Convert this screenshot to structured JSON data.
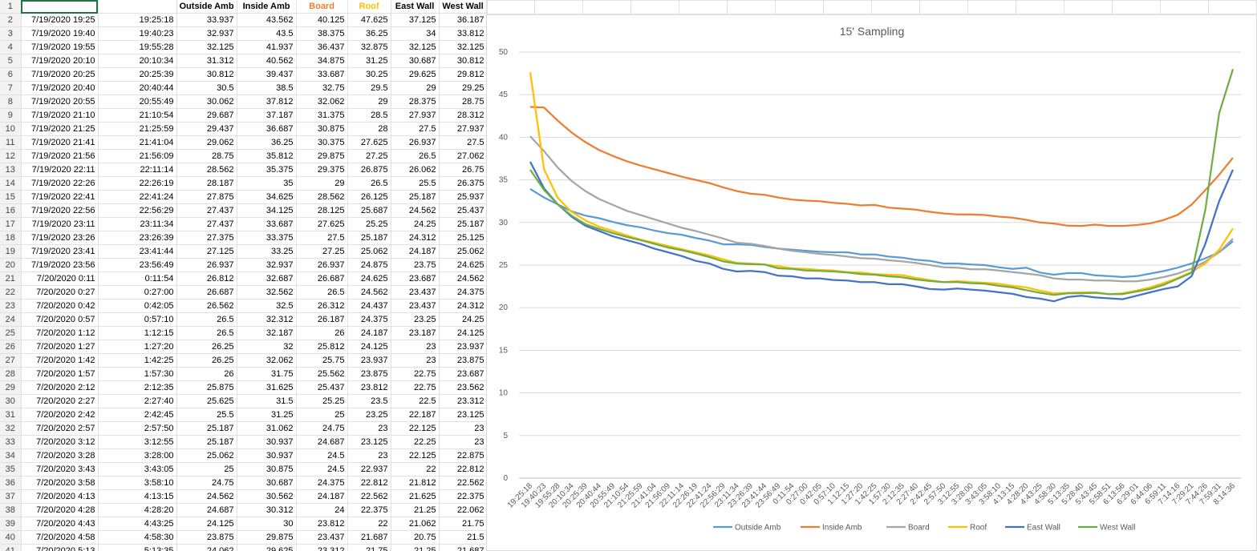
{
  "sheet": {
    "selected_cell_row": "1",
    "columns": [
      "",
      "",
      "Outside Amb",
      "Inside Amb",
      "Board",
      "Roof",
      "East Wall",
      "West Wall"
    ],
    "header_colors": [
      "#000000",
      "#000000",
      "#000000",
      "#000000",
      "#ED7D31",
      "#FFC000",
      "#000000",
      "#000000"
    ],
    "rows": [
      [
        "7/19/2020 19:25",
        "19:25:18",
        "33.937",
        "43.562",
        "40.125",
        "47.625",
        "37.125",
        "36.187"
      ],
      [
        "7/19/2020 19:40",
        "19:40:23",
        "32.937",
        "43.5",
        "38.375",
        "36.25",
        "34",
        "33.812"
      ],
      [
        "7/19/2020 19:55",
        "19:55:28",
        "32.125",
        "41.937",
        "36.437",
        "32.875",
        "32.125",
        "32.125"
      ],
      [
        "7/19/2020 20:10",
        "20:10:34",
        "31.312",
        "40.562",
        "34.875",
        "31.25",
        "30.687",
        "30.812"
      ],
      [
        "7/19/2020 20:25",
        "20:25:39",
        "30.812",
        "39.437",
        "33.687",
        "30.25",
        "29.625",
        "29.812"
      ],
      [
        "7/19/2020 20:40",
        "20:40:44",
        "30.5",
        "38.5",
        "32.75",
        "29.5",
        "29",
        "29.25"
      ],
      [
        "7/19/2020 20:55",
        "20:55:49",
        "30.062",
        "37.812",
        "32.062",
        "29",
        "28.375",
        "28.75"
      ],
      [
        "7/19/2020 21:10",
        "21:10:54",
        "29.687",
        "37.187",
        "31.375",
        "28.5",
        "27.937",
        "28.312"
      ],
      [
        "7/19/2020 21:25",
        "21:25:59",
        "29.437",
        "36.687",
        "30.875",
        "28",
        "27.5",
        "27.937"
      ],
      [
        "7/19/2020 21:41",
        "21:41:04",
        "29.062",
        "36.25",
        "30.375",
        "27.625",
        "26.937",
        "27.5"
      ],
      [
        "7/19/2020 21:56",
        "21:56:09",
        "28.75",
        "35.812",
        "29.875",
        "27.25",
        "26.5",
        "27.062"
      ],
      [
        "7/19/2020 22:11",
        "22:11:14",
        "28.562",
        "35.375",
        "29.375",
        "26.875",
        "26.062",
        "26.75"
      ],
      [
        "7/19/2020 22:26",
        "22:26:19",
        "28.187",
        "35",
        "29",
        "26.5",
        "25.5",
        "26.375"
      ],
      [
        "7/19/2020 22:41",
        "22:41:24",
        "27.875",
        "34.625",
        "28.562",
        "26.125",
        "25.187",
        "25.937"
      ],
      [
        "7/19/2020 22:56",
        "22:56:29",
        "27.437",
        "34.125",
        "28.125",
        "25.687",
        "24.562",
        "25.437"
      ],
      [
        "7/19/2020 23:11",
        "23:11:34",
        "27.437",
        "33.687",
        "27.625",
        "25.25",
        "24.25",
        "25.187"
      ],
      [
        "7/19/2020 23:26",
        "23:26:39",
        "27.375",
        "33.375",
        "27.5",
        "25.187",
        "24.312",
        "25.125"
      ],
      [
        "7/19/2020 23:41",
        "23:41:44",
        "27.125",
        "33.25",
        "27.25",
        "25.062",
        "24.187",
        "25.062"
      ],
      [
        "7/19/2020 23:56",
        "23:56:49",
        "26.937",
        "32.937",
        "26.937",
        "24.875",
        "23.75",
        "24.625"
      ],
      [
        "7/20/2020 0:11",
        "0:11:54",
        "26.812",
        "32.687",
        "26.687",
        "24.625",
        "23.687",
        "24.562"
      ],
      [
        "7/20/2020 0:27",
        "0:27:00",
        "26.687",
        "32.562",
        "26.5",
        "24.562",
        "23.437",
        "24.375"
      ],
      [
        "7/20/2020 0:42",
        "0:42:05",
        "26.562",
        "32.5",
        "26.312",
        "24.437",
        "23.437",
        "24.312"
      ],
      [
        "7/20/2020 0:57",
        "0:57:10",
        "26.5",
        "32.312",
        "26.187",
        "24.375",
        "23.25",
        "24.25"
      ],
      [
        "7/20/2020 1:12",
        "1:12:15",
        "26.5",
        "32.187",
        "26",
        "24.187",
        "23.187",
        "24.125"
      ],
      [
        "7/20/2020 1:27",
        "1:27:20",
        "26.25",
        "32",
        "25.812",
        "24.125",
        "23",
        "23.937"
      ],
      [
        "7/20/2020 1:42",
        "1:42:25",
        "26.25",
        "32.062",
        "25.75",
        "23.937",
        "23",
        "23.875"
      ],
      [
        "7/20/2020 1:57",
        "1:57:30",
        "26",
        "31.75",
        "25.562",
        "23.875",
        "22.75",
        "23.687"
      ],
      [
        "7/20/2020 2:12",
        "2:12:35",
        "25.875",
        "31.625",
        "25.437",
        "23.812",
        "22.75",
        "23.562"
      ],
      [
        "7/20/2020 2:27",
        "2:27:40",
        "25.625",
        "31.5",
        "25.25",
        "23.5",
        "22.5",
        "23.312"
      ],
      [
        "7/20/2020 2:42",
        "2:42:45",
        "25.5",
        "31.25",
        "25",
        "23.25",
        "22.187",
        "23.125"
      ],
      [
        "7/20/2020 2:57",
        "2:57:50",
        "25.187",
        "31.062",
        "24.75",
        "23",
        "22.125",
        "23"
      ],
      [
        "7/20/2020 3:12",
        "3:12:55",
        "25.187",
        "30.937",
        "24.687",
        "23.125",
        "22.25",
        "23"
      ],
      [
        "7/20/2020 3:28",
        "3:28:00",
        "25.062",
        "30.937",
        "24.5",
        "23",
        "22.125",
        "22.875"
      ],
      [
        "7/20/2020 3:43",
        "3:43:05",
        "25",
        "30.875",
        "24.5",
        "22.937",
        "22",
        "22.812"
      ],
      [
        "7/20/2020 3:58",
        "3:58:10",
        "24.75",
        "30.687",
        "24.375",
        "22.812",
        "21.812",
        "22.562"
      ],
      [
        "7/20/2020 4:13",
        "4:13:15",
        "24.562",
        "30.562",
        "24.187",
        "22.562",
        "21.625",
        "22.375"
      ],
      [
        "7/20/2020 4:28",
        "4:28:20",
        "24.687",
        "30.312",
        "24",
        "22.375",
        "21.25",
        "22.062"
      ],
      [
        "7/20/2020 4:43",
        "4:43:25",
        "24.125",
        "30",
        "23.812",
        "22",
        "21.062",
        "21.75"
      ],
      [
        "7/20/2020 4:58",
        "4:58:30",
        "23.875",
        "29.875",
        "23.437",
        "21.687",
        "20.75",
        "21.5"
      ],
      [
        "7/20/2020 5:13",
        "5:13:35",
        "24.062",
        "29.625",
        "23.312",
        "21.75",
        "21.25",
        "21.687"
      ]
    ]
  },
  "chart_data": {
    "type": "line",
    "title": "15' Sampling",
    "xlabel": "",
    "ylabel": "",
    "ylim": [
      0,
      50
    ],
    "y_ticks": [
      0,
      5,
      10,
      15,
      20,
      25,
      30,
      35,
      40,
      45,
      50
    ],
    "legend_position": "bottom",
    "grid": true,
    "x": [
      "19:25:18",
      "19:40:23",
      "19:55:28",
      "20:10:34",
      "20:25:39",
      "20:40:44",
      "20:55:49",
      "21:10:54",
      "21:25:59",
      "21:41:04",
      "21:56:09",
      "22:11:14",
      "22:26:19",
      "22:41:24",
      "22:56:29",
      "23:11:34",
      "23:26:39",
      "23:41:44",
      "23:56:49",
      "0:11:54",
      "0:27:00",
      "0:42:05",
      "0:57:10",
      "1:12:15",
      "1:27:20",
      "1:42:25",
      "1:57:30",
      "2:12:35",
      "2:27:40",
      "2:42:45",
      "2:57:50",
      "3:12:55",
      "3:28:00",
      "3:43:05",
      "3:58:10",
      "4:13:15",
      "4:28:20",
      "4:43:25",
      "4:58:30",
      "5:13:35",
      "5:28:40",
      "5:43:45",
      "5:58:51",
      "6:13:56",
      "6:29:01",
      "6:44:06",
      "6:59:11",
      "7:14:16",
      "7:29:21",
      "7:44:26",
      "7:59:31",
      "8:14:36"
    ],
    "series": [
      {
        "name": "Outside Amb",
        "color": "#5B9BD5",
        "values": [
          33.937,
          32.937,
          32.125,
          31.312,
          30.812,
          30.5,
          30.062,
          29.687,
          29.437,
          29.062,
          28.75,
          28.562,
          28.187,
          27.875,
          27.437,
          27.437,
          27.375,
          27.125,
          26.937,
          26.812,
          26.687,
          26.562,
          26.5,
          26.5,
          26.25,
          26.25,
          26,
          25.875,
          25.625,
          25.5,
          25.187,
          25.187,
          25.062,
          25,
          24.75,
          24.562,
          24.687,
          24.125,
          23.875,
          24.062,
          24.062,
          23.8,
          23.7,
          23.6,
          23.7,
          24.0,
          24.3,
          24.7,
          25.2,
          25.8,
          26.5,
          27.8
        ]
      },
      {
        "name": "Inside Amb",
        "color": "#ED7D31",
        "values": [
          43.562,
          43.5,
          41.937,
          40.562,
          39.437,
          38.5,
          37.812,
          37.187,
          36.687,
          36.25,
          35.812,
          35.375,
          35,
          34.625,
          34.125,
          33.687,
          33.375,
          33.25,
          32.937,
          32.687,
          32.562,
          32.5,
          32.312,
          32.187,
          32,
          32.062,
          31.75,
          31.625,
          31.5,
          31.25,
          31.062,
          30.937,
          30.937,
          30.875,
          30.687,
          30.562,
          30.312,
          30,
          29.875,
          29.625,
          29.6,
          29.75,
          29.6,
          29.6,
          29.7,
          29.9,
          30.3,
          30.9,
          32.1,
          33.8,
          35.6,
          37.6
        ]
      },
      {
        "name": "Board",
        "color": "#A5A5A5",
        "values": [
          40.125,
          38.375,
          36.437,
          34.875,
          33.687,
          32.75,
          32.062,
          31.375,
          30.875,
          30.375,
          29.875,
          29.375,
          29,
          28.562,
          28.125,
          27.625,
          27.5,
          27.25,
          26.937,
          26.687,
          26.5,
          26.312,
          26.187,
          26,
          25.812,
          25.75,
          25.562,
          25.437,
          25.25,
          25,
          24.75,
          24.687,
          24.5,
          24.5,
          24.375,
          24.187,
          24,
          23.812,
          23.437,
          23.312,
          23.3,
          23.2,
          23.2,
          23.1,
          23.1,
          23.3,
          23.6,
          24.0,
          24.6,
          25.4,
          26.5,
          28.1
        ]
      },
      {
        "name": "Roof",
        "color": "#FFC000",
        "values": [
          47.625,
          36.25,
          32.875,
          31.25,
          30.25,
          29.5,
          29,
          28.5,
          28,
          27.625,
          27.25,
          26.875,
          26.5,
          26.125,
          25.687,
          25.25,
          25.187,
          25.062,
          24.875,
          24.625,
          24.562,
          24.437,
          24.375,
          24.187,
          24.125,
          23.937,
          23.875,
          23.812,
          23.5,
          23.25,
          23,
          23.125,
          23,
          22.937,
          22.812,
          22.562,
          22.375,
          22,
          21.687,
          21.75,
          21.8,
          21.8,
          21.6,
          21.7,
          22.0,
          22.4,
          22.9,
          23.5,
          24.2,
          25.2,
          26.8,
          29.3
        ]
      },
      {
        "name": "East Wall",
        "color": "#4472C4",
        "values": [
          37.125,
          34,
          32.125,
          30.687,
          29.625,
          29,
          28.375,
          27.937,
          27.5,
          26.937,
          26.5,
          26.062,
          25.5,
          25.187,
          24.562,
          24.25,
          24.312,
          24.187,
          23.75,
          23.687,
          23.437,
          23.437,
          23.25,
          23.187,
          23,
          23,
          22.75,
          22.75,
          22.5,
          22.187,
          22.125,
          22.25,
          22.125,
          22,
          21.812,
          21.625,
          21.25,
          21.062,
          20.75,
          21.25,
          21.4,
          21.2,
          21.1,
          21.0,
          21.4,
          21.8,
          22.2,
          22.5,
          23.7,
          27.5,
          32.5,
          36.2
        ]
      },
      {
        "name": "West Wall",
        "color": "#70AD47",
        "values": [
          36.187,
          33.812,
          32.125,
          30.812,
          29.812,
          29.25,
          28.75,
          28.312,
          27.937,
          27.5,
          27.062,
          26.75,
          26.375,
          25.937,
          25.437,
          25.187,
          25.125,
          25.062,
          24.625,
          24.562,
          24.375,
          24.312,
          24.25,
          24.125,
          23.937,
          23.875,
          23.687,
          23.562,
          23.312,
          23.125,
          23,
          23,
          22.875,
          22.812,
          22.562,
          22.375,
          22.062,
          21.75,
          21.5,
          21.687,
          21.7,
          21.75,
          21.6,
          21.6,
          21.9,
          22.2,
          22.7,
          23.4,
          24.1,
          31.5,
          42.8,
          48.0
        ]
      }
    ]
  }
}
